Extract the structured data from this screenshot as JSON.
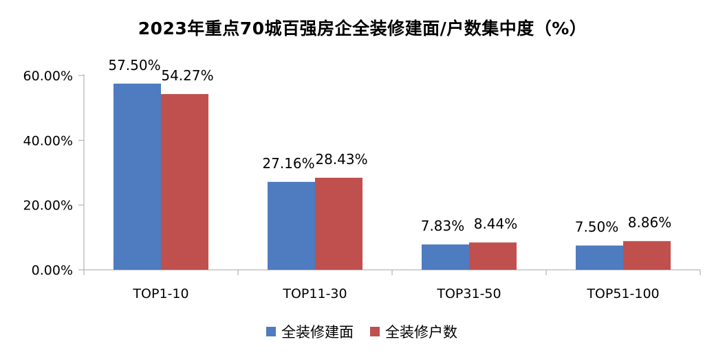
{
  "chart_data": {
    "type": "bar",
    "title": "2023年重点70城百强房企全装修建面/户数集中度（%）",
    "categories": [
      "TOP1-10",
      "TOP11-30",
      "TOP31-50",
      "TOP51-100"
    ],
    "series": [
      {
        "name": "全装修建面",
        "color": "#4F7BC0",
        "values": [
          57.5,
          27.16,
          7.83,
          7.5
        ],
        "labels": [
          "57.50%",
          "27.16%",
          "7.83%",
          "7.50%"
        ]
      },
      {
        "name": "全装修户数",
        "color": "#C0504D",
        "values": [
          54.27,
          28.43,
          8.44,
          8.86
        ],
        "labels": [
          "54.27%",
          "28.43%",
          "8.44%",
          "8.86%"
        ]
      }
    ],
    "yticks": [
      "0.00%",
      "20.00%",
      "40.00%",
      "60.00%"
    ],
    "ytick_values": [
      0,
      20,
      40,
      60
    ],
    "ylim": [
      0,
      60
    ],
    "xlabel": "",
    "ylabel": "",
    "grid": false,
    "legend_position": "bottom"
  }
}
